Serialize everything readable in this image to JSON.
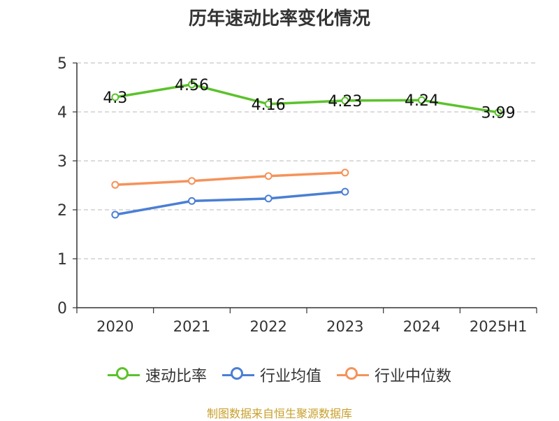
{
  "chart_data": {
    "type": "line",
    "title": "历年速动比率变化情况",
    "categories": [
      "2020",
      "2021",
      "2022",
      "2023",
      "2024",
      "2025H1"
    ],
    "ylim": [
      0,
      5
    ],
    "yticks": [
      0,
      1,
      2,
      3,
      4,
      5
    ],
    "grid": true,
    "legend_position": "bottom",
    "series": [
      {
        "name": "速动比率",
        "color": "#5bc22b",
        "values": [
          4.3,
          4.56,
          4.16,
          4.23,
          4.24,
          3.99
        ],
        "labels": [
          "4.3",
          "4.56",
          "4.16",
          "4.23",
          "4.24",
          "3.99"
        ]
      },
      {
        "name": "行业均值",
        "color": "#4a7fd4",
        "values": [
          1.9,
          2.18,
          2.23,
          2.37,
          null,
          null
        ]
      },
      {
        "name": "行业中位数",
        "color": "#f5935a",
        "values": [
          2.51,
          2.59,
          2.69,
          2.76,
          null,
          null
        ]
      }
    ]
  },
  "source": "制图数据来自恒生聚源数据库"
}
